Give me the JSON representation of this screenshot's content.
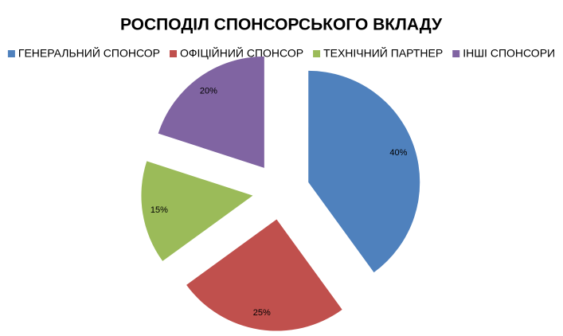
{
  "chart_data": {
    "type": "pie",
    "title": "РОСПОДІЛ СПОНСОРСЬКОГО ВКЛАДУ",
    "categories": [
      "ГЕНЕРАЛЬНИЙ СПОНСОР",
      "ОФІЦІЙНИЙ СПОНСОР",
      "ТЕХНІЧНИЙ ПАРТНЕР",
      "ІНШІ СПОНСОРИ"
    ],
    "values": [
      40,
      25,
      15,
      20
    ],
    "value_labels": [
      "40%",
      "25%",
      "15%",
      "20%"
    ],
    "colors": [
      "#4f81bd",
      "#c0504d",
      "#9bbb59",
      "#8064a2"
    ],
    "legend": "top"
  }
}
